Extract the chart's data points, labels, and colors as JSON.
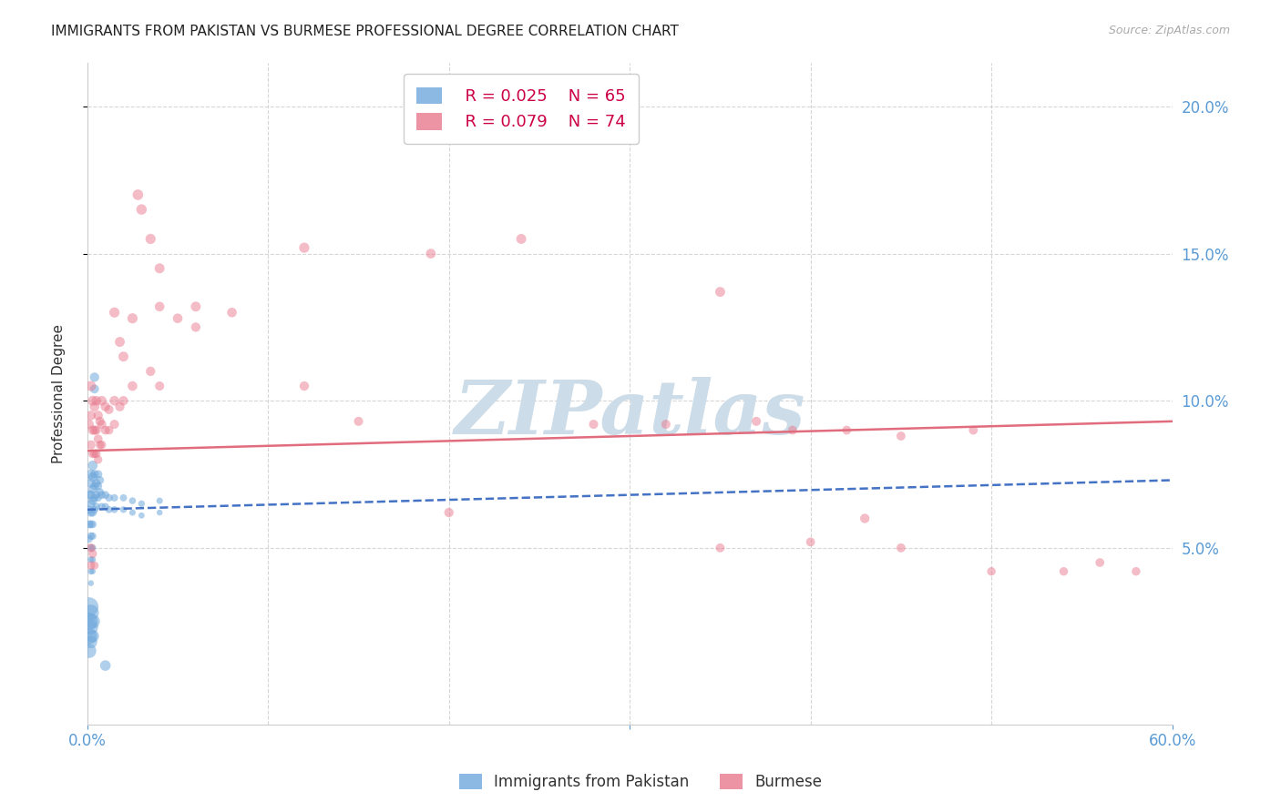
{
  "title": "IMMIGRANTS FROM PAKISTAN VS BURMESE PROFESSIONAL DEGREE CORRELATION CHART",
  "source": "Source: ZipAtlas.com",
  "ylabel": "Professional Degree",
  "xlim": [
    0.0,
    0.6
  ],
  "ylim": [
    -0.01,
    0.215
  ],
  "yticks": [
    0.05,
    0.1,
    0.15,
    0.2
  ],
  "ytick_labels": [
    "5.0%",
    "10.0%",
    "15.0%",
    "20.0%"
  ],
  "pakistan_color": "#6fa8dc",
  "pakistan_alpha": 0.55,
  "burmese_color": "#e87a8e",
  "burmese_alpha": 0.5,
  "pakistan_points": [
    [
      0.001,
      0.068
    ],
    [
      0.001,
      0.063
    ],
    [
      0.001,
      0.058
    ],
    [
      0.001,
      0.053
    ],
    [
      0.002,
      0.075
    ],
    [
      0.002,
      0.072
    ],
    [
      0.002,
      0.068
    ],
    [
      0.002,
      0.065
    ],
    [
      0.002,
      0.062
    ],
    [
      0.002,
      0.058
    ],
    [
      0.002,
      0.054
    ],
    [
      0.002,
      0.05
    ],
    [
      0.002,
      0.046
    ],
    [
      0.002,
      0.042
    ],
    [
      0.002,
      0.038
    ],
    [
      0.003,
      0.078
    ],
    [
      0.003,
      0.074
    ],
    [
      0.003,
      0.07
    ],
    [
      0.003,
      0.066
    ],
    [
      0.003,
      0.062
    ],
    [
      0.003,
      0.058
    ],
    [
      0.003,
      0.054
    ],
    [
      0.003,
      0.05
    ],
    [
      0.003,
      0.046
    ],
    [
      0.003,
      0.042
    ],
    [
      0.004,
      0.108
    ],
    [
      0.004,
      0.104
    ],
    [
      0.004,
      0.075
    ],
    [
      0.004,
      0.071
    ],
    [
      0.004,
      0.067
    ],
    [
      0.004,
      0.063
    ],
    [
      0.005,
      0.072
    ],
    [
      0.005,
      0.068
    ],
    [
      0.005,
      0.064
    ],
    [
      0.006,
      0.075
    ],
    [
      0.006,
      0.071
    ],
    [
      0.006,
      0.067
    ],
    [
      0.007,
      0.073
    ],
    [
      0.007,
      0.069
    ],
    [
      0.008,
      0.068
    ],
    [
      0.008,
      0.064
    ],
    [
      0.01,
      0.068
    ],
    [
      0.01,
      0.064
    ],
    [
      0.012,
      0.067
    ],
    [
      0.012,
      0.063
    ],
    [
      0.015,
      0.067
    ],
    [
      0.015,
      0.063
    ],
    [
      0.02,
      0.067
    ],
    [
      0.02,
      0.063
    ],
    [
      0.025,
      0.066
    ],
    [
      0.025,
      0.062
    ],
    [
      0.03,
      0.065
    ],
    [
      0.03,
      0.061
    ],
    [
      0.04,
      0.066
    ],
    [
      0.04,
      0.062
    ],
    [
      0.001,
      0.03
    ],
    [
      0.001,
      0.025
    ],
    [
      0.001,
      0.02
    ],
    [
      0.001,
      0.015
    ],
    [
      0.002,
      0.028
    ],
    [
      0.002,
      0.023
    ],
    [
      0.002,
      0.018
    ],
    [
      0.003,
      0.025
    ],
    [
      0.003,
      0.02
    ],
    [
      0.01,
      0.01
    ]
  ],
  "pakistan_sizes": [
    50,
    45,
    40,
    35,
    60,
    55,
    52,
    48,
    44,
    40,
    36,
    32,
    28,
    25,
    22,
    60,
    55,
    50,
    46,
    42,
    38,
    34,
    30,
    26,
    22,
    55,
    50,
    48,
    44,
    40,
    36,
    46,
    42,
    38,
    44,
    40,
    36,
    42,
    38,
    40,
    36,
    38,
    34,
    36,
    32,
    34,
    30,
    32,
    28,
    30,
    26,
    28,
    24,
    26,
    22,
    220,
    190,
    160,
    130,
    160,
    130,
    100,
    130,
    100,
    70
  ],
  "burmese_points": [
    [
      0.001,
      0.092
    ],
    [
      0.002,
      0.105
    ],
    [
      0.002,
      0.095
    ],
    [
      0.002,
      0.085
    ],
    [
      0.003,
      0.1
    ],
    [
      0.003,
      0.09
    ],
    [
      0.003,
      0.082
    ],
    [
      0.004,
      0.098
    ],
    [
      0.004,
      0.09
    ],
    [
      0.004,
      0.082
    ],
    [
      0.005,
      0.1
    ],
    [
      0.005,
      0.09
    ],
    [
      0.005,
      0.082
    ],
    [
      0.006,
      0.095
    ],
    [
      0.006,
      0.087
    ],
    [
      0.006,
      0.08
    ],
    [
      0.007,
      0.093
    ],
    [
      0.007,
      0.085
    ],
    [
      0.008,
      0.1
    ],
    [
      0.008,
      0.092
    ],
    [
      0.008,
      0.085
    ],
    [
      0.01,
      0.098
    ],
    [
      0.01,
      0.09
    ],
    [
      0.012,
      0.097
    ],
    [
      0.012,
      0.09
    ],
    [
      0.015,
      0.13
    ],
    [
      0.015,
      0.1
    ],
    [
      0.015,
      0.092
    ],
    [
      0.018,
      0.12
    ],
    [
      0.018,
      0.098
    ],
    [
      0.02,
      0.115
    ],
    [
      0.02,
      0.1
    ],
    [
      0.025,
      0.128
    ],
    [
      0.025,
      0.105
    ],
    [
      0.028,
      0.17
    ],
    [
      0.03,
      0.165
    ],
    [
      0.035,
      0.155
    ],
    [
      0.035,
      0.11
    ],
    [
      0.04,
      0.145
    ],
    [
      0.04,
      0.132
    ],
    [
      0.04,
      0.105
    ],
    [
      0.05,
      0.128
    ],
    [
      0.06,
      0.132
    ],
    [
      0.06,
      0.125
    ],
    [
      0.08,
      0.13
    ],
    [
      0.12,
      0.152
    ],
    [
      0.12,
      0.105
    ],
    [
      0.15,
      0.093
    ],
    [
      0.19,
      0.15
    ],
    [
      0.24,
      0.155
    ],
    [
      0.28,
      0.092
    ],
    [
      0.32,
      0.092
    ],
    [
      0.35,
      0.137
    ],
    [
      0.37,
      0.093
    ],
    [
      0.39,
      0.09
    ],
    [
      0.42,
      0.09
    ],
    [
      0.45,
      0.088
    ],
    [
      0.49,
      0.09
    ],
    [
      0.002,
      0.05
    ],
    [
      0.002,
      0.044
    ],
    [
      0.003,
      0.048
    ],
    [
      0.004,
      0.044
    ],
    [
      0.35,
      0.05
    ],
    [
      0.4,
      0.052
    ],
    [
      0.45,
      0.05
    ],
    [
      0.5,
      0.042
    ],
    [
      0.54,
      0.042
    ],
    [
      0.56,
      0.045
    ],
    [
      0.58,
      0.042
    ],
    [
      0.2,
      0.062
    ],
    [
      0.43,
      0.06
    ]
  ],
  "burmese_sizes": [
    55,
    65,
    58,
    52,
    62,
    55,
    48,
    58,
    52,
    46,
    58,
    52,
    46,
    55,
    50,
    44,
    52,
    46,
    58,
    52,
    46,
    55,
    50,
    52,
    48,
    65,
    58,
    52,
    62,
    55,
    62,
    55,
    65,
    58,
    70,
    68,
    65,
    55,
    62,
    58,
    52,
    58,
    62,
    55,
    58,
    65,
    55,
    52,
    60,
    62,
    52,
    52,
    62,
    52,
    50,
    50,
    50,
    50,
    50,
    44,
    46,
    42,
    50,
    50,
    50,
    46,
    46,
    48,
    46,
    55,
    55
  ],
  "pakistan_trend_x": [
    0.0,
    0.6
  ],
  "pakistan_trend_y": [
    0.063,
    0.073
  ],
  "pakistan_trend_color": "#4472c4",
  "burmese_trend_x": [
    0.0,
    0.6
  ],
  "burmese_trend_y": [
    0.083,
    0.093
  ],
  "burmese_trend_color": "#e06c7d",
  "watermark": "ZIPatlas",
  "watermark_color": "#ccdce8",
  "background_color": "#ffffff",
  "grid_color": "#cccccc",
  "tick_color": "#5b9bd5",
  "title_fontsize": 11,
  "axis_label_fontsize": 11,
  "legend_fontsize": 13
}
